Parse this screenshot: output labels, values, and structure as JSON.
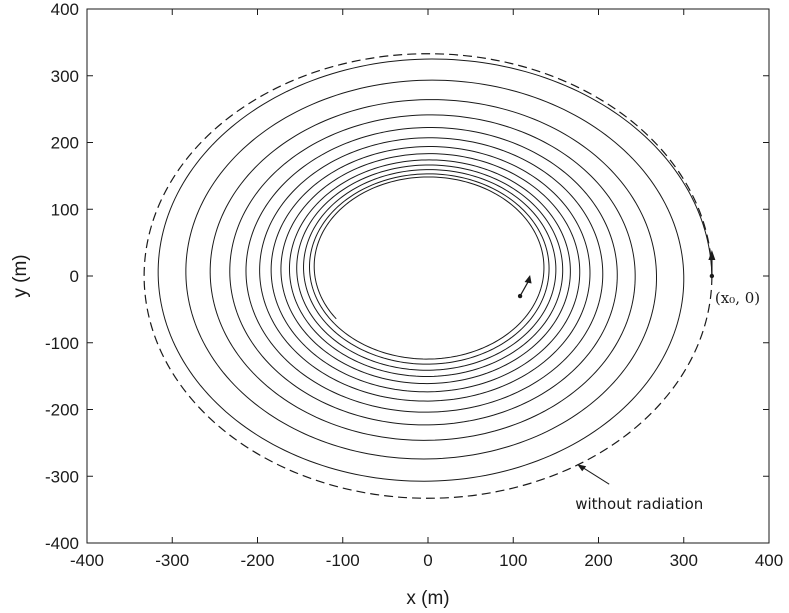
{
  "chart_data": {
    "type": "line",
    "title": "",
    "xlabel": "x (m)",
    "ylabel": "y (m)",
    "xlim": [
      -400,
      400
    ],
    "ylim": [
      -400,
      400
    ],
    "xticks": [
      -400,
      -300,
      -200,
      -100,
      0,
      100,
      200,
      300,
      400
    ],
    "yticks": [
      -400,
      -300,
      -200,
      -100,
      0,
      100,
      200,
      300,
      400
    ],
    "xtick_labels": [
      "-400",
      "-300",
      "-200",
      "-100",
      "0",
      "100",
      "200",
      "300",
      "400"
    ],
    "ytick_labels": [
      "-400",
      "-300",
      "-200",
      "-100",
      "0",
      "100",
      "200",
      "300",
      "400"
    ],
    "grid": false,
    "series": [
      {
        "style": "dashed",
        "color": "#1a1a1a",
        "shape": "circle",
        "center": [
          0,
          0
        ],
        "radius": 333
      },
      {
        "style": "solid",
        "color": "#1a1a1a",
        "shape": "inward spiral (counter-clockwise)",
        "start": [
          333,
          0
        ],
        "end": [
          108,
          -30
        ],
        "turns": 12.6,
        "revolution_radii": [
          333,
          300,
          268,
          243,
          222,
          205,
          190,
          178,
          167,
          158,
          150,
          142,
          136,
          131,
          126
        ]
      }
    ],
    "annotations": [
      {
        "text": "without radiation",
        "arrow_to": [
          175,
          -282
        ]
      },
      {
        "text": "(x₀, 0)",
        "at": [
          333,
          0
        ]
      }
    ]
  },
  "colors": {
    "line": "#1a1a1a",
    "background": "#ffffff"
  }
}
